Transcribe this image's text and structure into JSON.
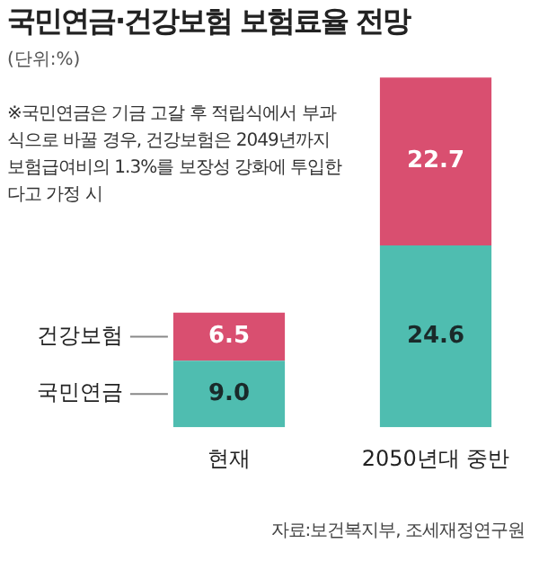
{
  "chart_data": {
    "type": "bar",
    "title": "국민연금·건강보험 보험료율 전망",
    "subtitle": "(단위:%)",
    "categories": [
      "현재",
      "2050년대 중반"
    ],
    "stacked": true,
    "legend": false,
    "grid": false,
    "series": [
      {
        "name": "국민연금",
        "color": "#4fbdb0",
        "values": [
          9.0,
          24.6
        ],
        "value_labels": [
          "9.0",
          "24.6"
        ]
      },
      {
        "name": "건강보험",
        "color": "#d94f70",
        "values": [
          6.5,
          22.7
        ],
        "value_labels": [
          "6.5",
          "22.7"
        ]
      }
    ],
    "annotations": [
      "※국민연금은 기금 고갈 후 적립식에서 부과식으로 바꿀 경우, 건강보험은 2049년까지 보험급여비의 1.3%를 보장성 강화에 투입한다고 가정 시",
      "자료:보건복지부, 조세재정연구원"
    ]
  }
}
